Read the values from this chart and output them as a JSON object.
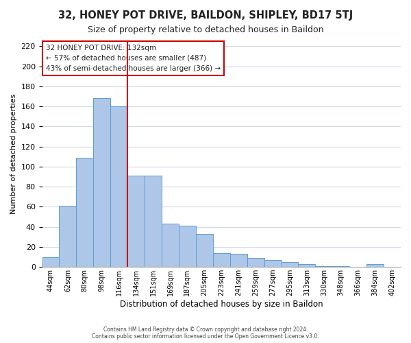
{
  "title": "32, HONEY POT DRIVE, BAILDON, SHIPLEY, BD17 5TJ",
  "subtitle": "Size of property relative to detached houses in Baildon",
  "xlabel": "Distribution of detached houses by size in Baildon",
  "ylabel": "Number of detached properties",
  "bar_labels": [
    "44sqm",
    "62sqm",
    "80sqm",
    "98sqm",
    "116sqm",
    "134sqm",
    "151sqm",
    "169sqm",
    "187sqm",
    "205sqm",
    "223sqm",
    "241sqm",
    "259sqm",
    "277sqm",
    "295sqm",
    "313sqm",
    "330sqm",
    "348sqm",
    "366sqm",
    "384sqm",
    "402sqm"
  ],
  "bar_values": [
    10,
    61,
    109,
    168,
    160,
    91,
    91,
    43,
    41,
    33,
    14,
    13,
    9,
    7,
    5,
    3,
    1,
    1,
    0,
    3,
    0
  ],
  "bar_color": "#aec6e8",
  "bar_edge_color": "#5a9fd4",
  "vline_x_index": 5,
  "vline_color": "#cc0000",
  "ylim": [
    0,
    225
  ],
  "yticks": [
    0,
    20,
    40,
    60,
    80,
    100,
    120,
    140,
    160,
    180,
    200,
    220
  ],
  "annotation_title": "32 HONEY POT DRIVE: 132sqm",
  "annotation_line1": "← 57% of detached houses are smaller (487)",
  "annotation_line2": "43% of semi-detached houses are larger (366) →",
  "footer1": "Contains HM Land Registry data © Crown copyright and database right 2024.",
  "footer2": "Contains public sector information licensed under the Open Government Licence v3.0.",
  "background_color": "#ffffff",
  "grid_color": "#d0d8e8"
}
